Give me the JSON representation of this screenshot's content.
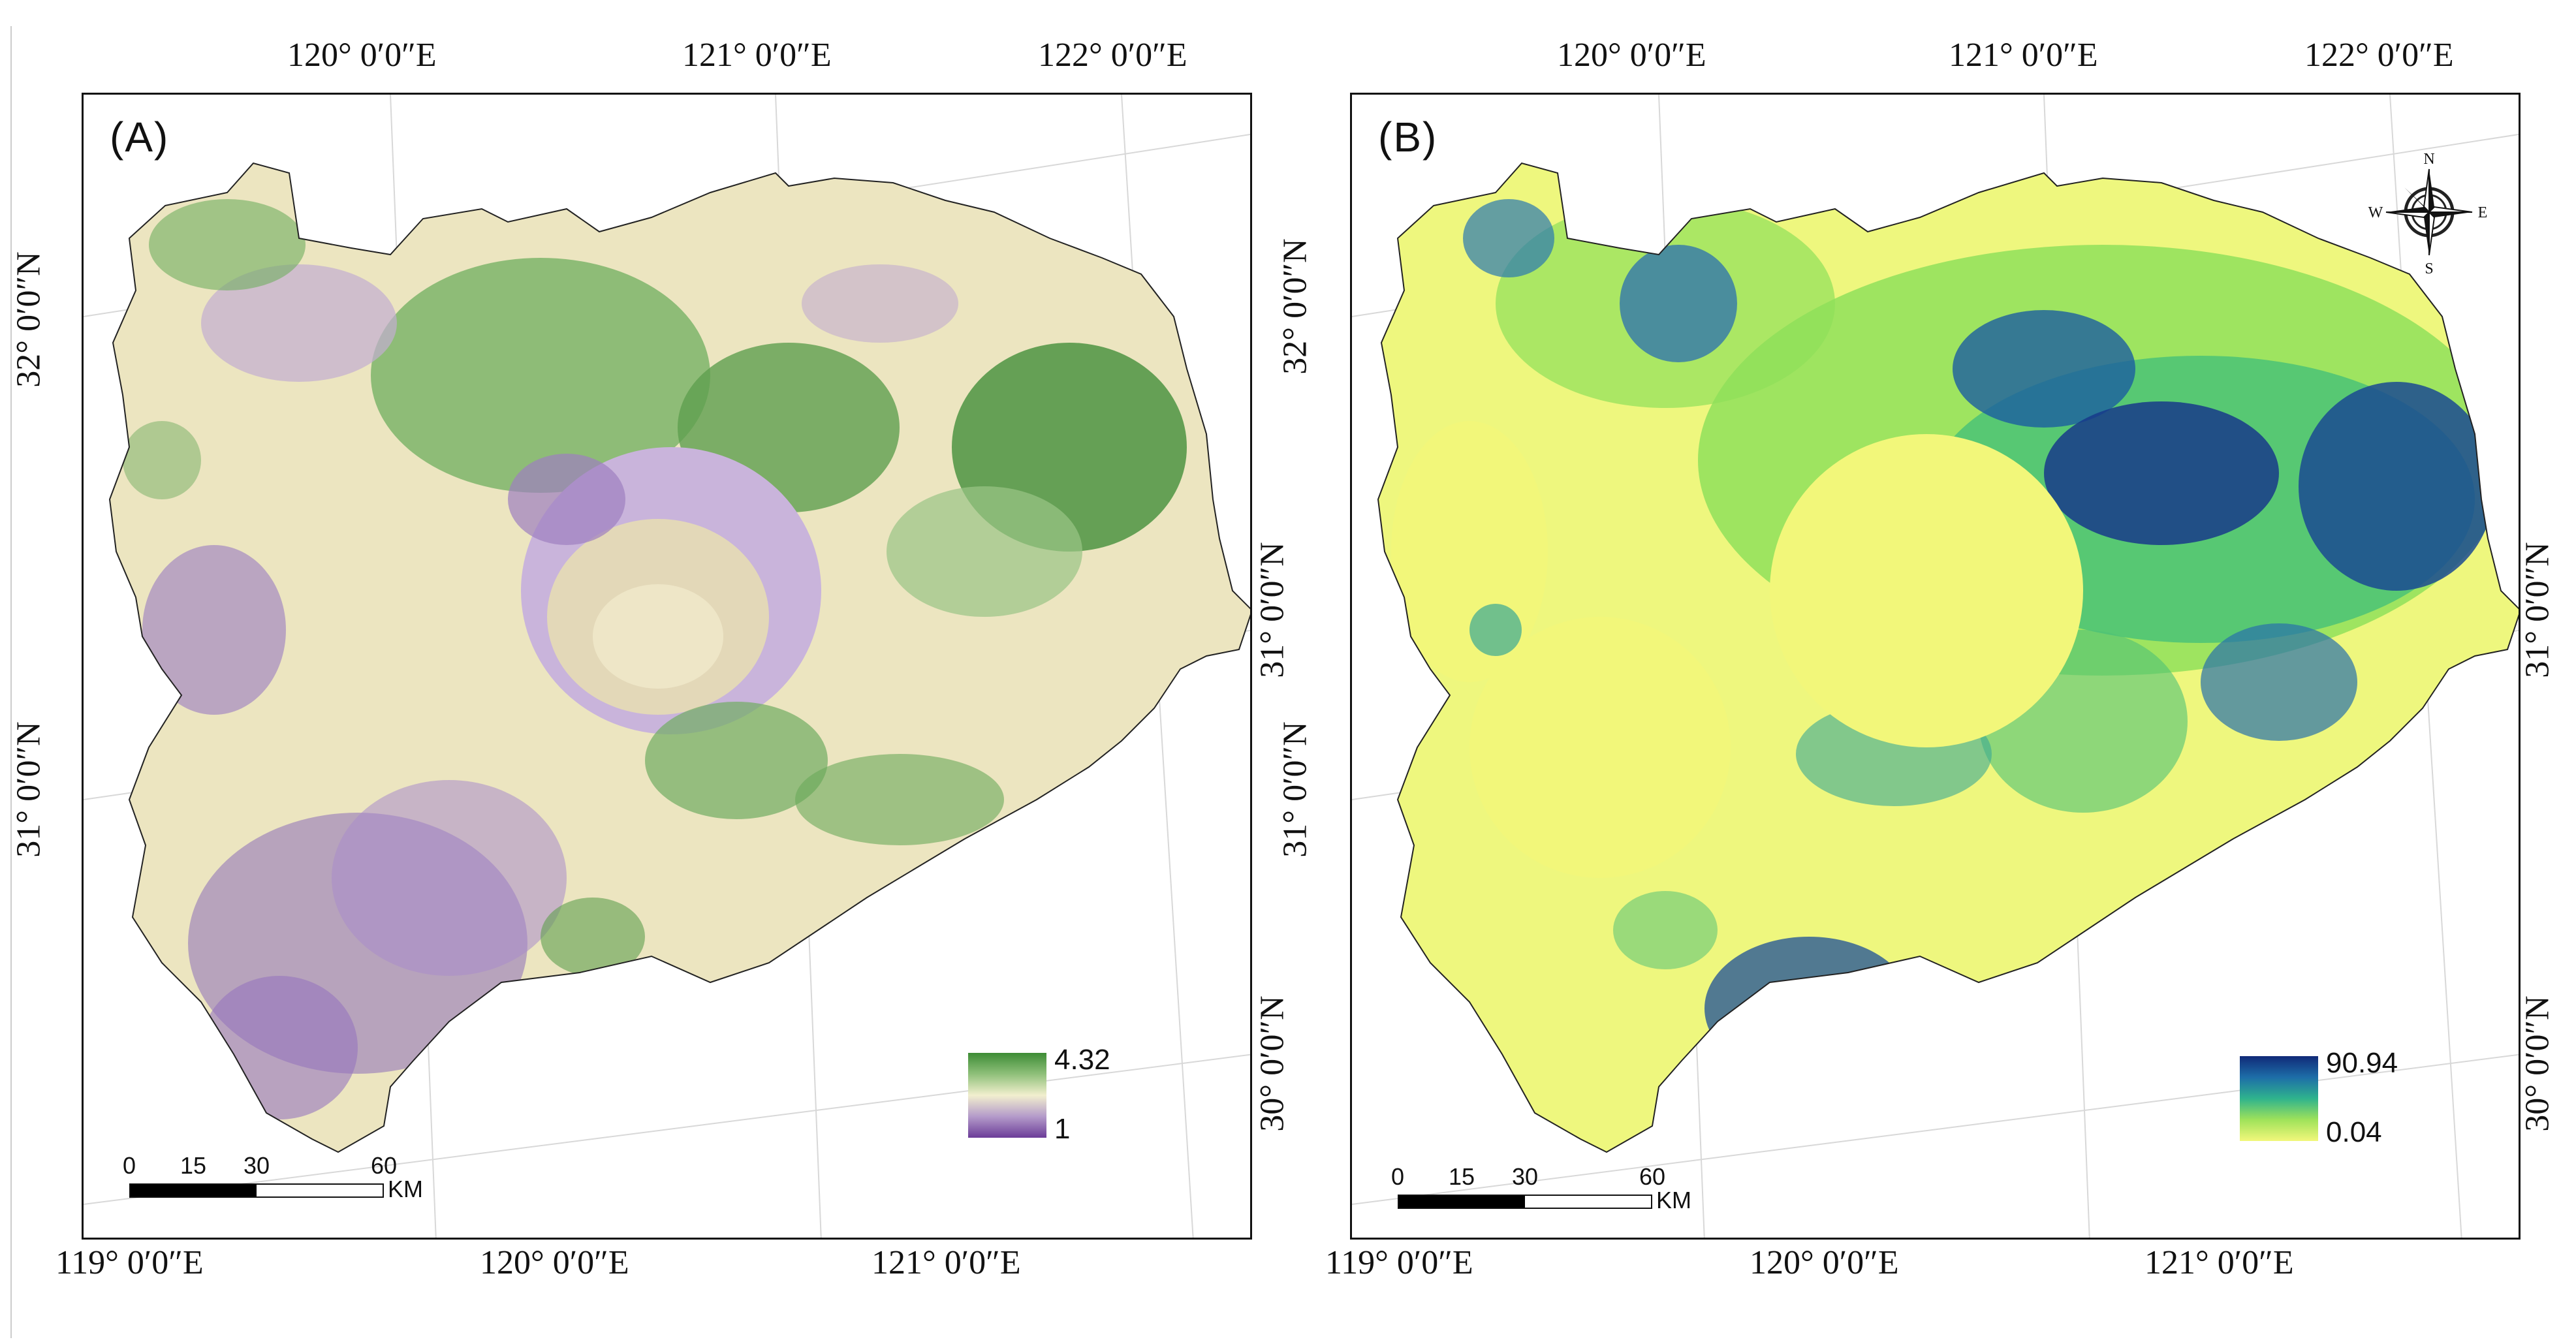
{
  "panels": [
    {
      "label": "(A)",
      "legend": {
        "max": "4.32",
        "min": "1",
        "colors": [
          "#3d8c35",
          "#8fc07a",
          "#f2efce",
          "#b49bca",
          "#6b3c98"
        ]
      },
      "scalebar": {
        "ticks": [
          "0",
          "15",
          "30",
          "60"
        ],
        "unit": "KM"
      }
    },
    {
      "label": "(B)",
      "legend": {
        "max": "90.94",
        "min": "0.04",
        "colors": [
          "#102a78",
          "#1d6ea8",
          "#2fb38d",
          "#9fe25a",
          "#f2f77a"
        ]
      },
      "scalebar": {
        "ticks": [
          "0",
          "15",
          "30",
          "60"
        ],
        "unit": "KM"
      },
      "compass": {
        "n": "N",
        "s": "S",
        "e": "E",
        "w": "W"
      }
    }
  ],
  "coords": {
    "a_top": [
      "120° 0′0″E",
      "121° 0′0″E",
      "122° 0′0″E"
    ],
    "a_bottom": [
      "119° 0′0″E",
      "120° 0′0″E",
      "121° 0′0″E"
    ],
    "a_left": [
      "32° 0′0″N",
      "31° 0′0″N"
    ],
    "a_right": [
      "31° 0′0″N",
      "30° 0′0″N"
    ],
    "b_top": [
      "120° 0′0″E",
      "121° 0′0″E",
      "122° 0′0″E"
    ],
    "b_bottom": [
      "119° 0′0″E",
      "120° 0′0″E",
      "121° 0′0″E"
    ],
    "b_left": [
      "32° 0′0″N",
      "31° 0′0″N"
    ],
    "b_right": [
      "31° 0′0″N",
      "30° 0′0″N"
    ]
  }
}
